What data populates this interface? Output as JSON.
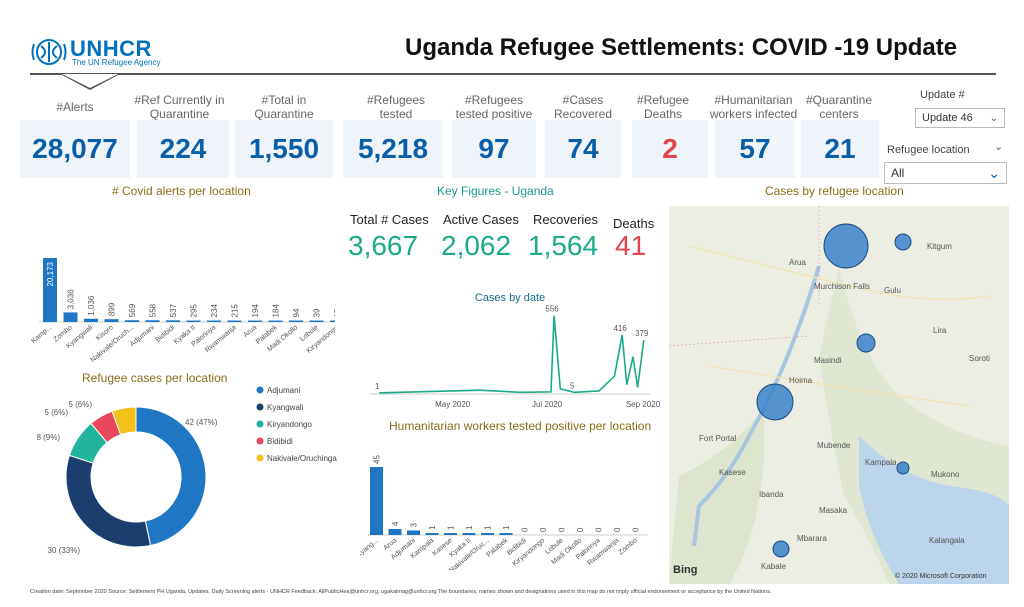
{
  "header": {
    "logo_text": "UNHCR",
    "logo_sub": "The UN Refugee Agency",
    "title": "Uganda Refugee Settlements: COVID -19 Update"
  },
  "kpis": [
    {
      "label": "#Alerts",
      "value": "28,077"
    },
    {
      "label": "#Ref Currently in Quarantine",
      "value": "224"
    },
    {
      "label": "#Total in Quarantine",
      "value": "1,550"
    },
    {
      "label": "#Refugees tested",
      "value": "5,218"
    },
    {
      "label": "#Refugees tested positive",
      "value": "97"
    },
    {
      "label": "#Cases Recovered",
      "value": "74"
    },
    {
      "label": "#Refugee Deaths",
      "value": "2"
    },
    {
      "label": "#Humanitarian workers infected",
      "value": "57"
    },
    {
      "label": "#Quarantine centers",
      "value": "21"
    }
  ],
  "filters": {
    "update_label": "Update #",
    "update_value": "Update 46",
    "location_label": "Refugee location",
    "location_value": "All"
  },
  "sections": {
    "alerts": "# Covid alerts per location",
    "key_figures": "Key Figures - Uganda",
    "cases_map": "Cases by refugee location",
    "refugee_cases": "Refugee cases per location",
    "cases_by_date": "Cases by date",
    "hum_workers": "Humanitarian workers tested positive per location"
  },
  "key_figures": [
    {
      "label": "Total # Cases",
      "value": "3,667"
    },
    {
      "label": "Active Cases",
      "value": "2,062"
    },
    {
      "label": "Recoveries",
      "value": "1,564"
    },
    {
      "label": "Deaths",
      "value": "41"
    }
  ],
  "map": {
    "credit": "© 2020 Microsoft Corporation",
    "bing": "Bing",
    "places": [
      "Arua",
      "Gulu",
      "Kitgum",
      "Murchison Falls",
      "Masindi",
      "Hoima",
      "Soroti",
      "Fort Portal",
      "Kasese",
      "Mubende",
      "Kampala",
      "Mukono",
      "Masaka",
      "Mbarara",
      "Kabale",
      "Lira",
      "Ibanda",
      "Kalangala"
    ]
  },
  "footer": "Creation date: September 2020    Source: Settlement PH Uganda, Updates, Daily Screening alerts - UNHCR    Feedback: AllPublicHea@unhcr.org, ugakaimag@unhcr.org    The boundaries, names shown and designations used in this map do not imply official endorsement or acceptance by the United Nations.",
  "chart_data": [
    {
      "type": "bar",
      "title": "# Covid alerts per location",
      "categories": [
        "Kamp...",
        "Zombo",
        "Kyangwali",
        "Kisoro",
        "Nakivale/Oruch...",
        "Adjumani",
        "Bidibidi",
        "Kyaka II",
        "Palorinya",
        "Rwamwanja",
        "Arua",
        "Palabek",
        "Madi Okollo",
        "Lobule",
        "Kiryandongo"
      ],
      "values": [
        20173,
        3036,
        1036,
        899,
        569,
        558,
        537,
        295,
        234,
        215,
        194,
        184,
        94,
        39,
        15
      ],
      "data_labels": [
        "20,173",
        "3,036",
        "1,036",
        "899",
        "569",
        "558",
        "537",
        "295",
        "234",
        "215",
        "194",
        "184",
        "94",
        "39",
        "15"
      ]
    },
    {
      "type": "pie",
      "title": "Refugee cases per location",
      "categories": [
        "Adjumani",
        "Kyangwali",
        "Kiryandongo",
        "Bidibidi",
        "Nakivale/Oruchinga"
      ],
      "values": [
        42,
        30,
        8,
        5,
        5
      ],
      "data_labels": [
        "42 (47%)",
        "30 (33%)",
        "8 (9%)",
        "5 (6%)",
        "5 (6%)"
      ],
      "colors": [
        "#1f77c4",
        "#1a3e6e",
        "#21b49a",
        "#e8485a",
        "#f2c21b"
      ],
      "legend": "right"
    },
    {
      "type": "line",
      "title": "Cases by date",
      "x_ticks": [
        "May 2020",
        "Jul 2020",
        "Sep 2020"
      ],
      "x": [
        "2020-03-21",
        "2020-05-25",
        "2020-06-20",
        "2020-07-10",
        "2020-07-12",
        "2020-07-16",
        "2020-07-25",
        "2020-08-10",
        "2020-08-20",
        "2020-08-25",
        "2020-08-28",
        "2020-09-01",
        "2020-09-04",
        "2020-09-08"
      ],
      "values": [
        1,
        20,
        5,
        8,
        556,
        30,
        5,
        15,
        120,
        416,
        60,
        260,
        40,
        379
      ],
      "point_labels": [
        {
          "x": "2020-03-21",
          "label": "1"
        },
        {
          "x": "2020-07-12",
          "label": "556"
        },
        {
          "x": "2020-07-25",
          "label": "5"
        },
        {
          "x": "2020-08-25",
          "label": "416"
        },
        {
          "x": "2020-09-08",
          "label": "379"
        }
      ],
      "color": "#1aaa8a"
    },
    {
      "type": "bar",
      "title": "Humanitarian workers tested positive per location",
      "categories": [
        "Kyang...",
        "Arua",
        "Adjumani",
        "Kampala",
        "Kasese",
        "Kyaka II",
        "Nakivale/Oruc...",
        "Palabek",
        "Bidibidi",
        "Kiryandongo",
        "Lobule",
        "Madi Okollo",
        "Palorinya",
        "Rwamwanja",
        "Zombo"
      ],
      "values": [
        45,
        4,
        3,
        1,
        1,
        1,
        1,
        1,
        0,
        0,
        0,
        0,
        0,
        0,
        0
      ],
      "data_labels": [
        "45",
        "4",
        "3",
        "1",
        "1",
        "1",
        "1",
        "1",
        "0",
        "0",
        "0",
        "0",
        "0",
        "0",
        "0"
      ]
    }
  ]
}
